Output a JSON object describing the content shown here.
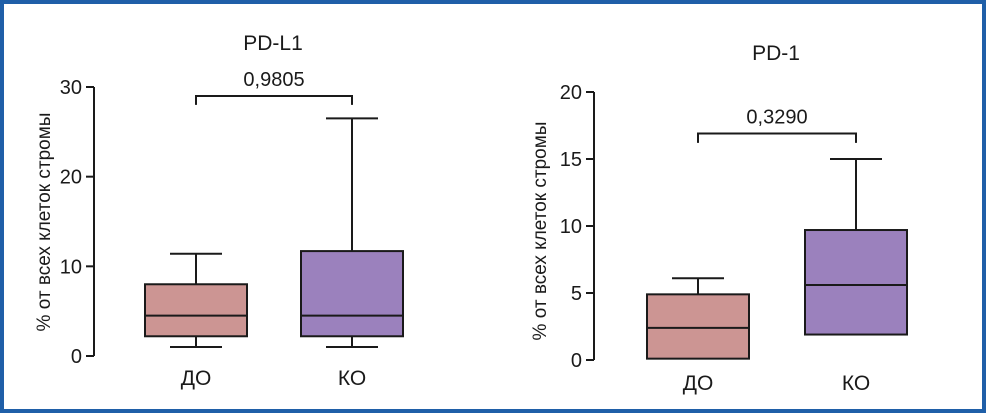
{
  "chart_data": [
    {
      "type": "boxplot",
      "title": "PD-L1",
      "ylabel": "% от всех клеток стромы",
      "xlabel": "",
      "ylim": [
        0,
        30
      ],
      "yticks": [
        "0",
        "10",
        "20",
        "30"
      ],
      "ytick_values": [
        0,
        10,
        20,
        30
      ],
      "categories": [
        "ДО",
        "КО"
      ],
      "series": [
        {
          "name": "ДО",
          "min": 1.0,
          "q1": 2.2,
          "median": 4.5,
          "q3": 8.0,
          "max": 11.4,
          "color": "#cc9593"
        },
        {
          "name": "КО",
          "min": 1.0,
          "q1": 2.2,
          "median": 4.5,
          "q3": 11.7,
          "max": 26.5,
          "color": "#9b81bd"
        }
      ],
      "comparison": {
        "label": "0,9805",
        "y": 29.0,
        "drop": 1.0
      }
    },
    {
      "type": "boxplot",
      "title": "PD-1",
      "ylabel": "% от всех клеток стромы",
      "xlabel": "",
      "ylim": [
        0,
        20
      ],
      "yticks": [
        "0",
        "5",
        "10",
        "15",
        "20"
      ],
      "ytick_values": [
        0,
        5,
        10,
        15,
        20
      ],
      "categories": [
        "ДО",
        "КО"
      ],
      "series": [
        {
          "name": "ДО",
          "min": 0.1,
          "q1": 0.1,
          "median": 2.4,
          "q3": 4.9,
          "max": 6.1,
          "color": "#cc9593"
        },
        {
          "name": "КО",
          "min": 1.9,
          "q1": 1.9,
          "median": 5.6,
          "q3": 9.7,
          "max": 15.0,
          "color": "#9b81bd"
        }
      ],
      "comparison": {
        "label": "0,3290",
        "y": 16.9,
        "drop": 0.7
      }
    }
  ]
}
